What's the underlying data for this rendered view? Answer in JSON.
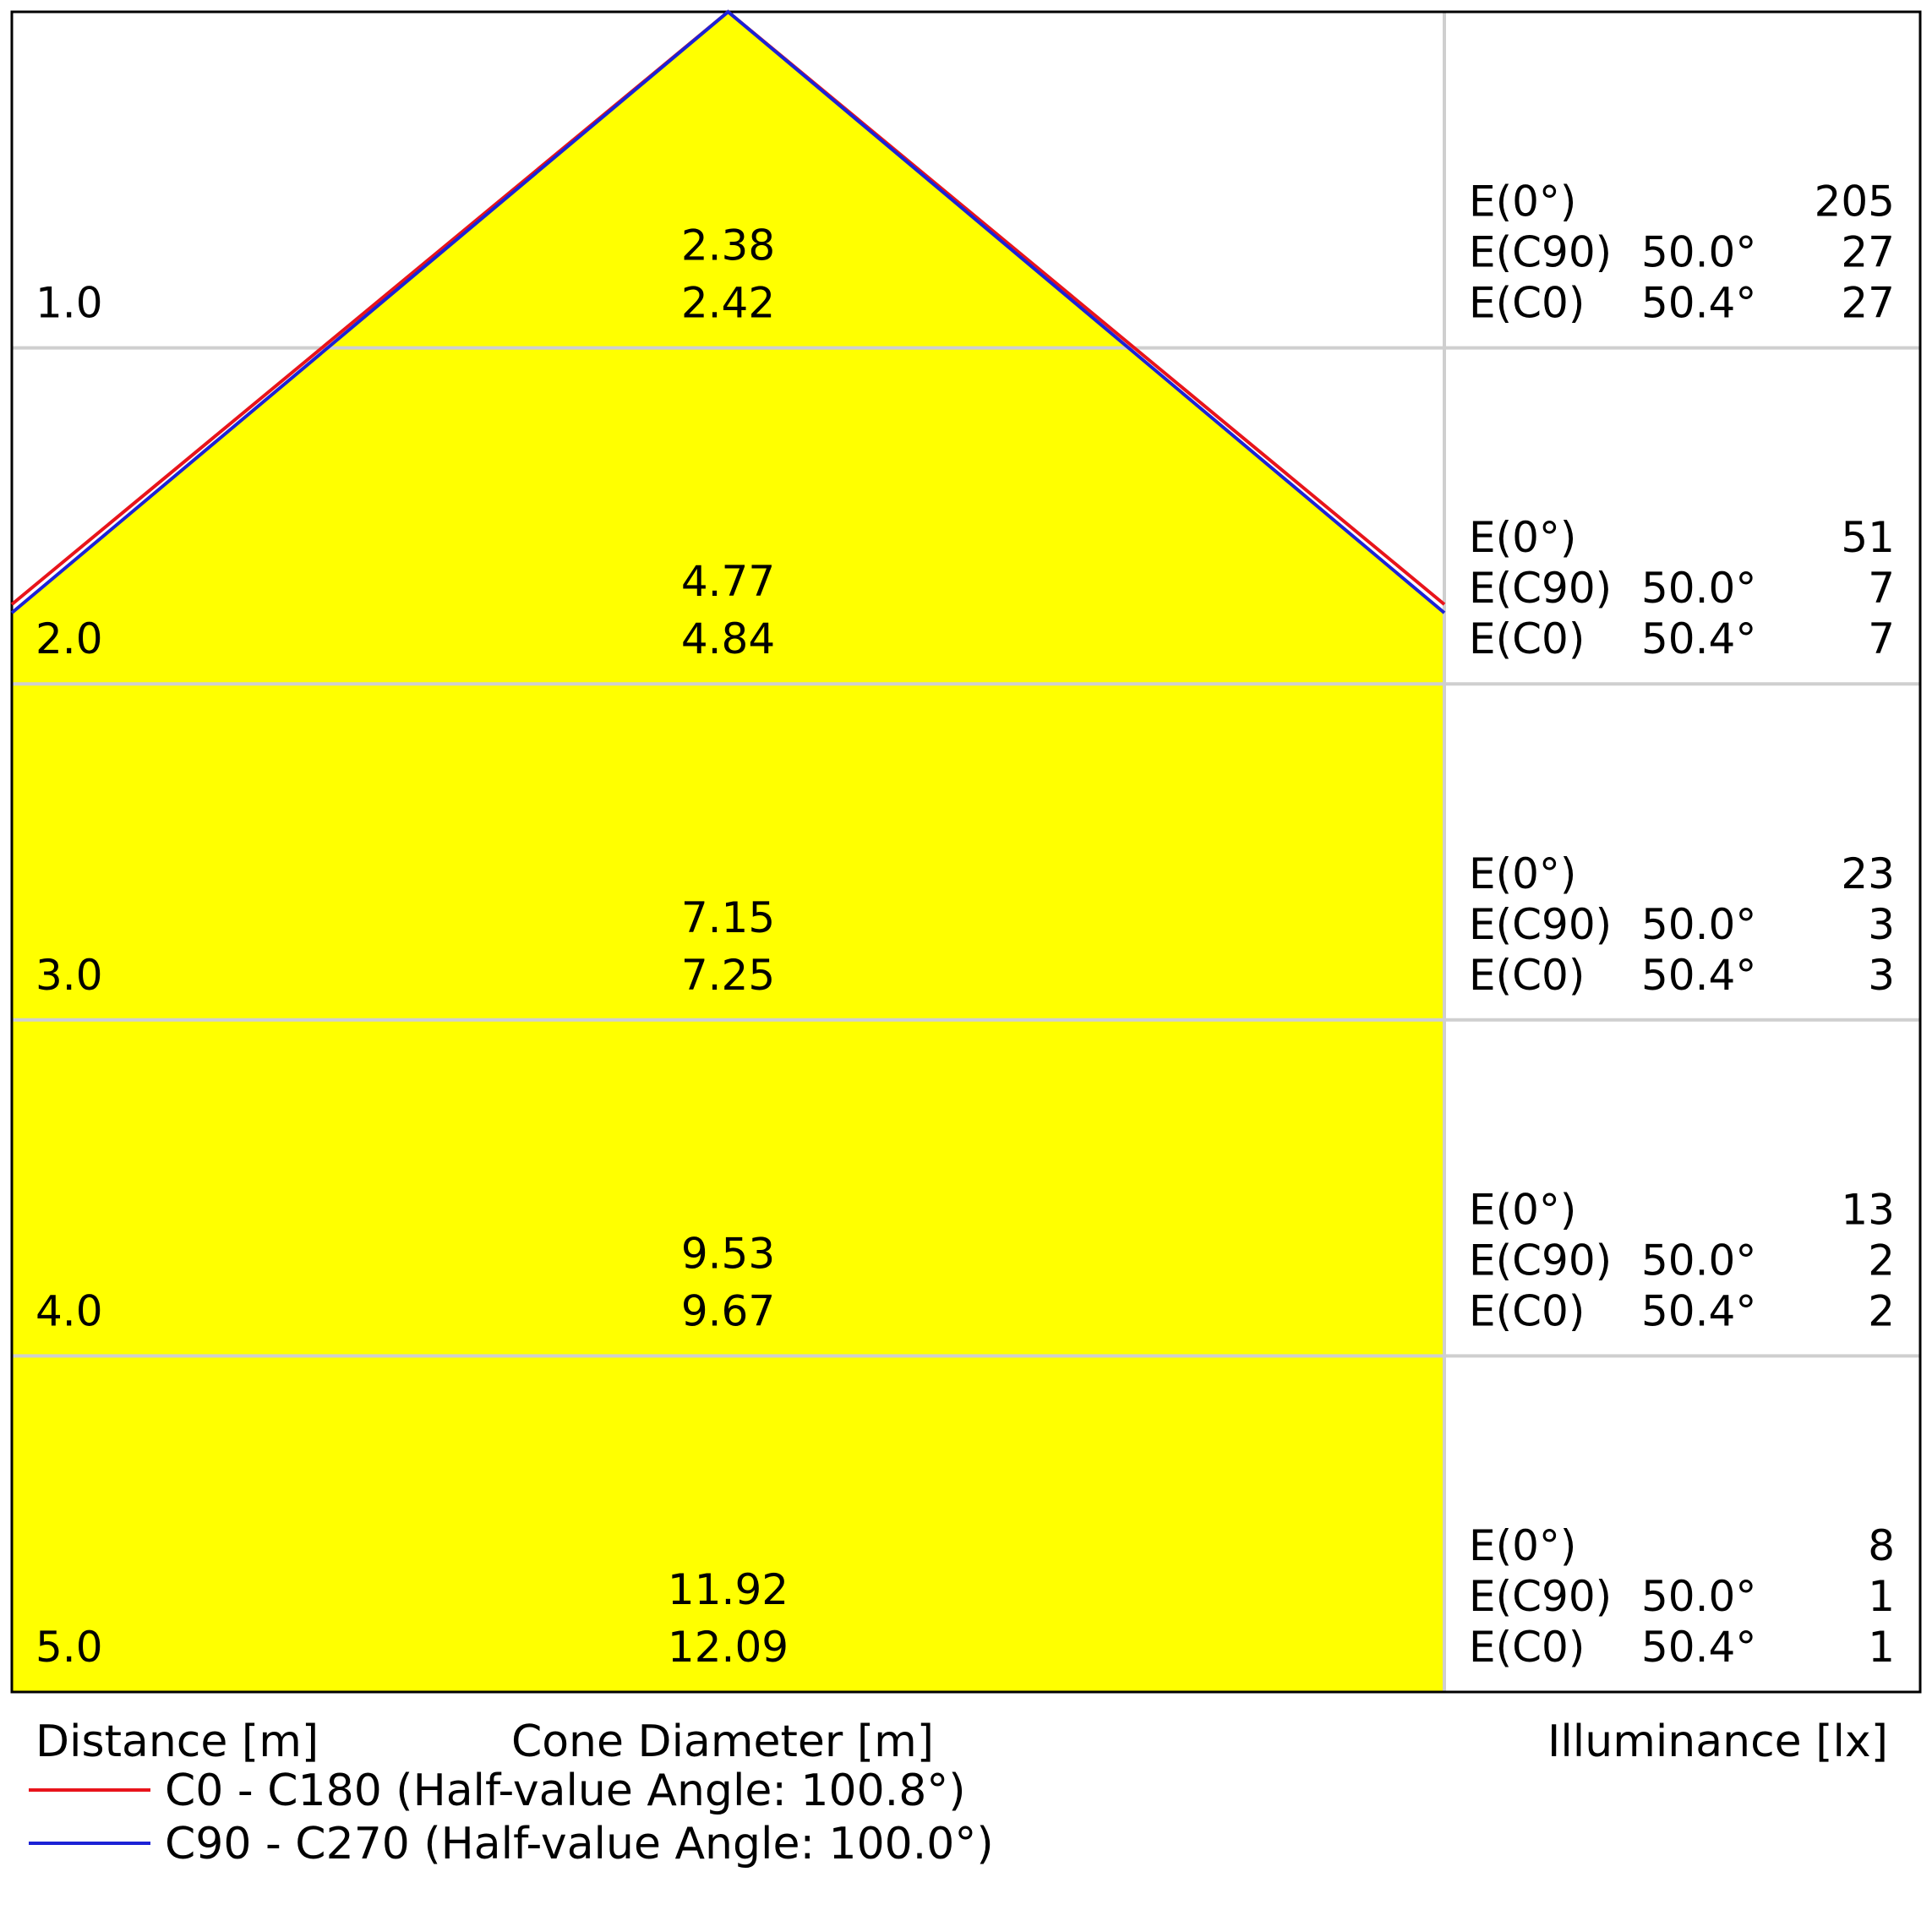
{
  "chart_data": {
    "type": "area",
    "distances": [
      "1.0",
      "2.0",
      "3.0",
      "4.0",
      "5.0"
    ],
    "cone_diameter": {
      "c90_c270": [
        "2.38",
        "4.77",
        "7.15",
        "9.53",
        "11.92"
      ],
      "c0_c180": [
        "2.42",
        "4.84",
        "7.25",
        "9.67",
        "12.09"
      ]
    },
    "illuminance": [
      {
        "rows": [
          {
            "label": "E(0°)",
            "angle": "",
            "value": "205"
          },
          {
            "label": "E(C90)",
            "angle": "50.0°",
            "value": "27"
          },
          {
            "label": "E(C0)",
            "angle": "50.4°",
            "value": "27"
          }
        ]
      },
      {
        "rows": [
          {
            "label": "E(0°)",
            "angle": "",
            "value": "51"
          },
          {
            "label": "E(C90)",
            "angle": "50.0°",
            "value": "7"
          },
          {
            "label": "E(C0)",
            "angle": "50.4°",
            "value": "7"
          }
        ]
      },
      {
        "rows": [
          {
            "label": "E(0°)",
            "angle": "",
            "value": "23"
          },
          {
            "label": "E(C90)",
            "angle": "50.0°",
            "value": "3"
          },
          {
            "label": "E(C0)",
            "angle": "50.4°",
            "value": "3"
          }
        ]
      },
      {
        "rows": [
          {
            "label": "E(0°)",
            "angle": "",
            "value": "13"
          },
          {
            "label": "E(C90)",
            "angle": "50.0°",
            "value": "2"
          },
          {
            "label": "E(C0)",
            "angle": "50.4°",
            "value": "2"
          }
        ]
      },
      {
        "rows": [
          {
            "label": "E(0°)",
            "angle": "",
            "value": "8"
          },
          {
            "label": "E(C90)",
            "angle": "50.0°",
            "value": "1"
          },
          {
            "label": "E(C0)",
            "angle": "50.4°",
            "value": "1"
          }
        ]
      }
    ],
    "xlabel_distance": "Distance [m]",
    "xlabel_cone": "Cone Diameter [m]",
    "xlabel_illuminance": "Illuminance [lx]",
    "series": [
      {
        "name": "C0 - C180 (Half-value Angle: 100.8°)",
        "half_angle": 100.8,
        "color": "#e8141b"
      },
      {
        "name": "C90 - C270 (Half-value Angle: 100.0°)",
        "half_angle": 100.0,
        "color": "#1b22d6"
      }
    ],
    "fill_color": "#ffff00",
    "distance_range": [
      0,
      5
    ]
  }
}
